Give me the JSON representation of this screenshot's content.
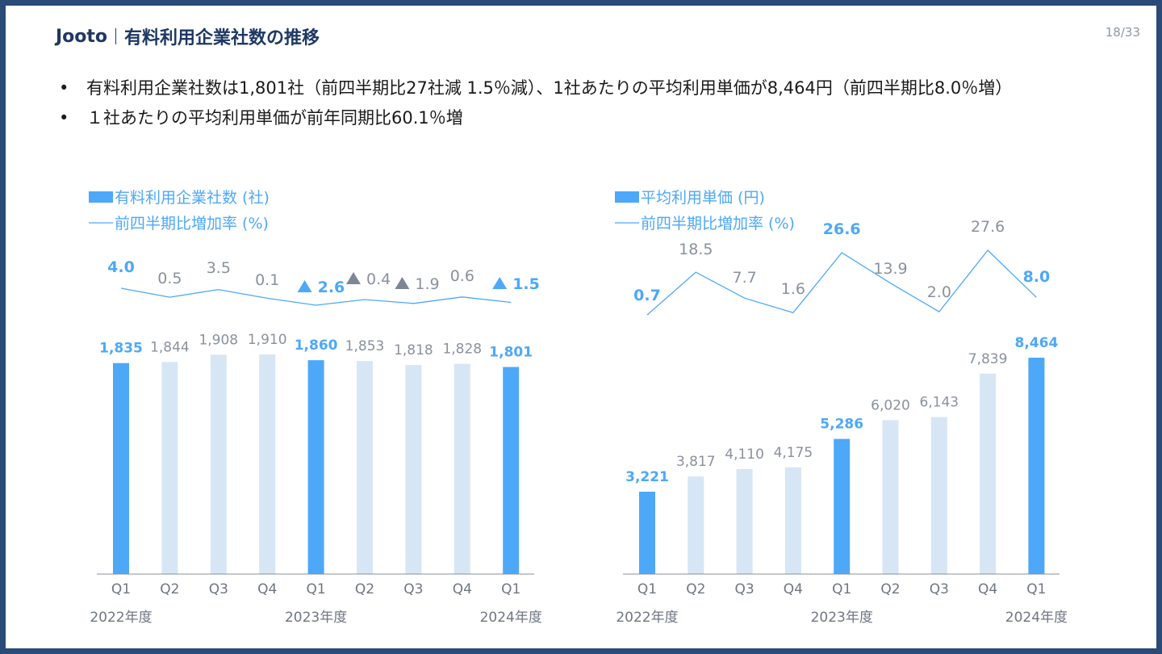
{
  "header": {
    "brand": "Jooto",
    "title": "有料利用企業社数の推移",
    "page": "18/33"
  },
  "bullets": [
    "有料利用企業社数は1,801社（前四半期比27社減 1.5％減）、1社あたりの平均利用単価が8,464円（前四半期比8.0％増）",
    "１社あたりの平均利用単価が前年同期比60.1％増"
  ],
  "colors": {
    "accent": "#4da8f8",
    "light": "#d6e6f5",
    "grey_label": "#8a919d",
    "frame": "#2a4a78",
    "title": "#1f3864",
    "down_triangle": "#7d8797"
  },
  "chart_data": [
    {
      "type": "bar",
      "legend": {
        "bar": "有料利用企業社数 (社)",
        "line": "前四半期比増加率 (%)"
      },
      "categories": [
        "Q1",
        "Q2",
        "Q3",
        "Q4",
        "Q1",
        "Q2",
        "Q3",
        "Q4",
        "Q1"
      ],
      "year_labels": [
        {
          "label": "2022年度",
          "at_index": 0
        },
        {
          "label": "2023年度",
          "at_index": 4
        },
        {
          "label": "2024年度",
          "at_index": 8
        }
      ],
      "series": [
        {
          "values": [
            1835,
            1844,
            1908,
            1910,
            1860,
            1853,
            1818,
            1828,
            1801
          ],
          "labels": [
            "1,835",
            "1,844",
            "1,908",
            "1,910",
            "1,860",
            "1,853",
            "1,818",
            "1,828",
            "1,801"
          ],
          "highlight": [
            true,
            false,
            false,
            false,
            true,
            false,
            false,
            false,
            true
          ]
        },
        {
          "values": [
            4.0,
            0.5,
            3.5,
            0.1,
            -2.6,
            -0.4,
            -1.9,
            0.6,
            -1.5
          ],
          "labels": [
            "4.0",
            "0.5",
            "3.5",
            "0.1",
            "2.6",
            "0.4",
            "1.9",
            "0.6",
            "1.5"
          ],
          "triangle": [
            false,
            false,
            false,
            false,
            true,
            true,
            true,
            false,
            true
          ]
        }
      ]
    },
    {
      "type": "bar",
      "legend": {
        "bar": "平均利用単価 (円)",
        "line": "前四半期比増加率 (%)"
      },
      "categories": [
        "Q1",
        "Q2",
        "Q3",
        "Q4",
        "Q1",
        "Q2",
        "Q3",
        "Q4",
        "Q1"
      ],
      "year_labels": [
        {
          "label": "2022年度",
          "at_index": 0
        },
        {
          "label": "2023年度",
          "at_index": 4
        },
        {
          "label": "2024年度",
          "at_index": 8
        }
      ],
      "series": [
        {
          "values": [
            3221,
            3817,
            4110,
            4175,
            5286,
            6020,
            6143,
            7839,
            8464
          ],
          "labels": [
            "3,221",
            "3,817",
            "4,110",
            "4,175",
            "5,286",
            "6,020",
            "6,143",
            "7,839",
            "8,464"
          ],
          "highlight": [
            true,
            false,
            false,
            false,
            true,
            false,
            false,
            false,
            true
          ]
        },
        {
          "values": [
            0.7,
            18.5,
            7.7,
            1.6,
            26.6,
            13.9,
            2.0,
            27.6,
            8.0
          ],
          "labels": [
            "0.7",
            "18.5",
            "7.7",
            "1.6",
            "26.6",
            "13.9",
            "2.0",
            "27.6",
            "8.0"
          ],
          "triangle": [
            false,
            false,
            false,
            false,
            false,
            false,
            false,
            false,
            false
          ]
        }
      ]
    }
  ]
}
